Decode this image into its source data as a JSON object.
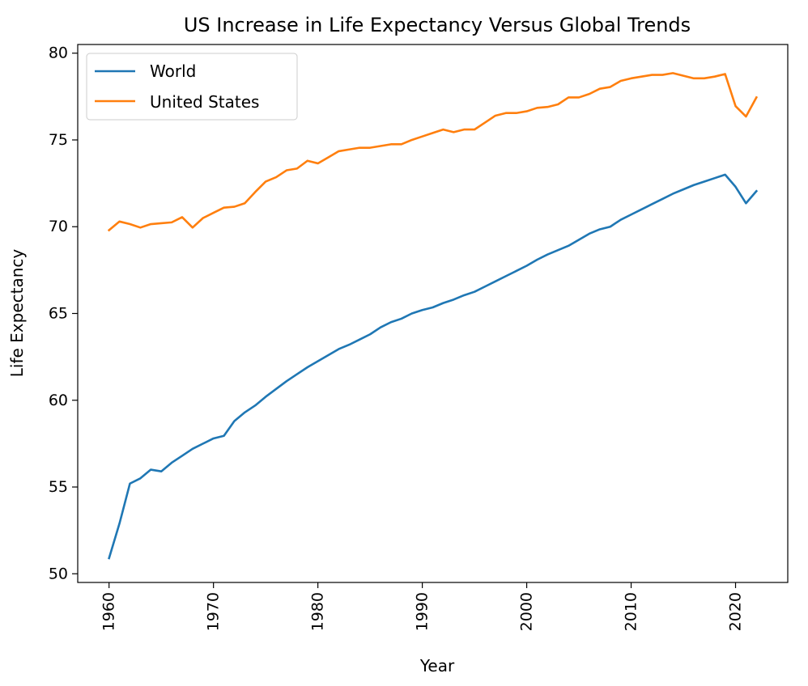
{
  "chart_data": {
    "type": "line",
    "title": "US Increase in Life Expectancy Versus Global Trends",
    "xlabel": "Year",
    "ylabel": "Life Expectancy",
    "xlim": [
      1957,
      2025
    ],
    "ylim": [
      49.5,
      80.5
    ],
    "xticks": [
      1960,
      1970,
      1980,
      1990,
      2000,
      2010,
      2020
    ],
    "yticks": [
      50,
      55,
      60,
      65,
      70,
      75,
      80
    ],
    "xtick_rotation": 90,
    "grid": false,
    "legend": "top-left",
    "x": [
      1960,
      1961,
      1962,
      1963,
      1964,
      1965,
      1966,
      1967,
      1968,
      1969,
      1970,
      1971,
      1972,
      1973,
      1974,
      1975,
      1976,
      1977,
      1978,
      1979,
      1980,
      1981,
      1982,
      1983,
      1984,
      1985,
      1986,
      1987,
      1988,
      1989,
      1990,
      1991,
      1992,
      1993,
      1994,
      1995,
      1996,
      1997,
      1998,
      1999,
      2000,
      2001,
      2002,
      2003,
      2004,
      2005,
      2006,
      2007,
      2008,
      2009,
      2010,
      2011,
      2012,
      2013,
      2014,
      2015,
      2016,
      2017,
      2018,
      2019,
      2020,
      2021,
      2022
    ],
    "series": [
      {
        "name": "World",
        "color": "#1f77b4",
        "values": [
          50.9,
          52.9,
          55.2,
          55.5,
          56.0,
          55.9,
          56.4,
          56.8,
          57.2,
          57.5,
          57.8,
          57.95,
          58.8,
          59.3,
          59.7,
          60.2,
          60.65,
          61.1,
          61.5,
          61.9,
          62.25,
          62.6,
          62.95,
          63.2,
          63.5,
          63.8,
          64.2,
          64.5,
          64.7,
          65.0,
          65.2,
          65.35,
          65.6,
          65.8,
          66.05,
          66.25,
          66.55,
          66.85,
          67.15,
          67.45,
          67.75,
          68.1,
          68.4,
          68.65,
          68.9,
          69.25,
          69.6,
          69.85,
          70.0,
          70.4,
          70.7,
          71.0,
          71.3,
          71.6,
          71.9,
          72.15,
          72.4,
          72.6,
          72.8,
          73.0,
          72.3,
          71.35,
          72.05
        ]
      },
      {
        "name": "United States",
        "color": "#ff7f0e",
        "values": [
          69.8,
          70.3,
          70.15,
          69.95,
          70.15,
          70.2,
          70.25,
          70.55,
          69.95,
          70.5,
          70.8,
          71.1,
          71.15,
          71.35,
          72.0,
          72.6,
          72.85,
          73.25,
          73.35,
          73.8,
          73.65,
          74.0,
          74.35,
          74.45,
          74.55,
          74.55,
          74.65,
          74.75,
          74.75,
          75.0,
          75.2,
          75.4,
          75.6,
          75.45,
          75.6,
          75.6,
          76.0,
          76.4,
          76.55,
          76.55,
          76.65,
          76.85,
          76.9,
          77.05,
          77.45,
          77.45,
          77.65,
          77.95,
          78.05,
          78.4,
          78.55,
          78.65,
          78.75,
          78.75,
          78.85,
          78.7,
          78.55,
          78.55,
          78.65,
          78.8,
          76.95,
          76.35,
          77.45
        ]
      }
    ]
  }
}
